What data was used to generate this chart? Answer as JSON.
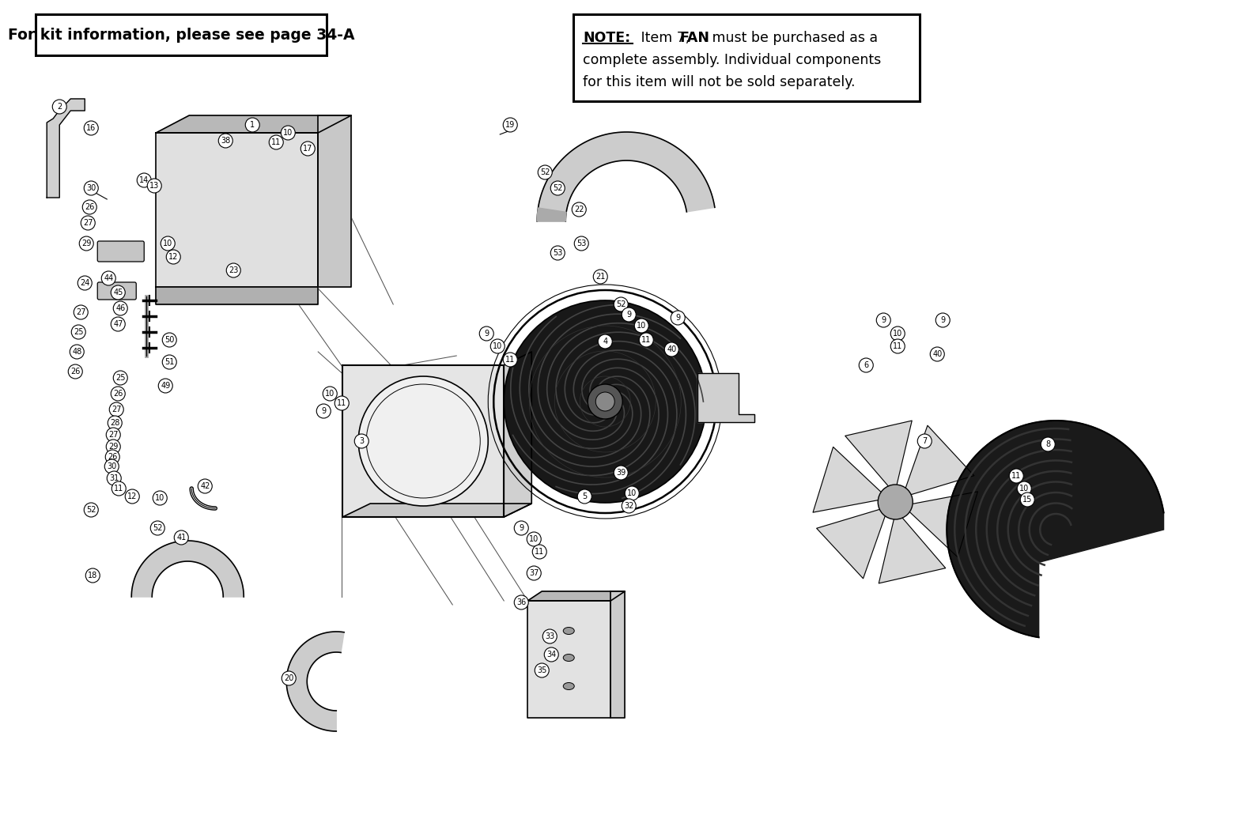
{
  "bg_color": "#ffffff",
  "line_color": "#000000",
  "top_left_box_text": "For kit information, please see page 34-A",
  "note_label": "NOTE:",
  "note_item": " Item 7, ",
  "note_fan": "FAN",
  "note_rest1": " must be purchased as a",
  "note_rest2": "complete assembly. Individual components",
  "note_rest3": "for this item will not be sold separately.",
  "figsize": [
    15.35,
    10.35
  ],
  "dpi": 100
}
